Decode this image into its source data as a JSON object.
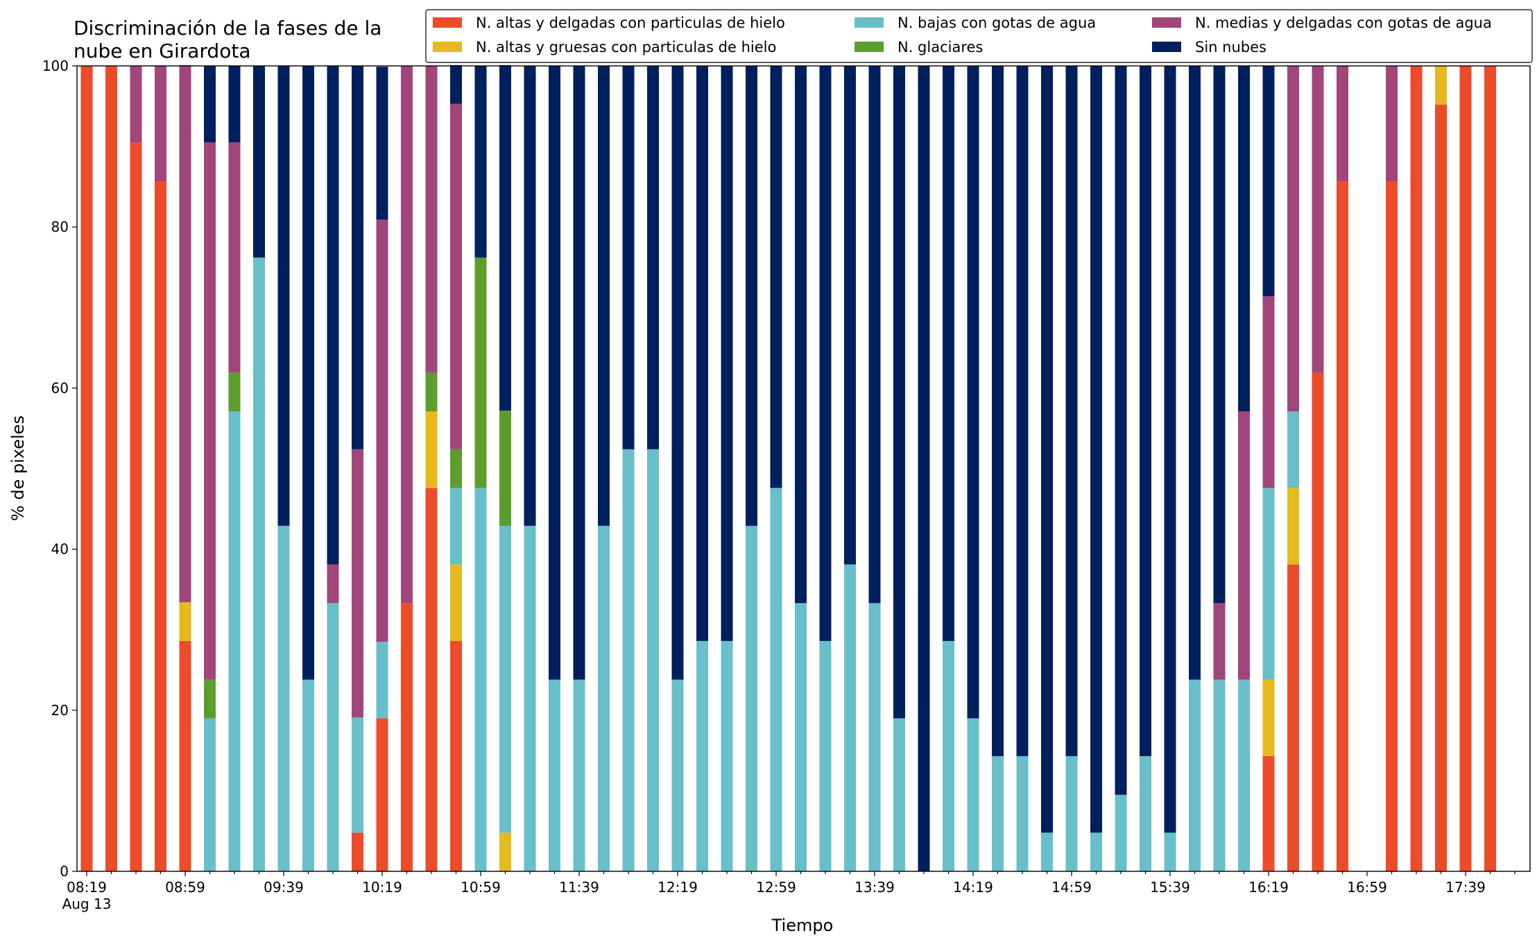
{
  "chart_data": {
    "type": "stacked_bar",
    "title": [
      "Discriminación de la fases de la",
      "nube en Girardota"
    ],
    "x_label": "Tiempo",
    "x_date_label": "Aug 13",
    "y_label": "% de pixeles",
    "categories": [
      "08:19",
      null,
      null,
      null,
      "08:59",
      null,
      null,
      null,
      "09:39",
      null,
      null,
      null,
      "10:19",
      null,
      null,
      null,
      "10:59",
      null,
      null,
      null,
      "11:39",
      null,
      null,
      null,
      "12:19",
      null,
      null,
      null,
      "12:59",
      null,
      null,
      null,
      "13:39",
      null,
      null,
      null,
      "14:19",
      null,
      null,
      null,
      "14:59",
      null,
      null,
      null,
      "15:39",
      null,
      null,
      null,
      "16:19",
      null,
      null,
      null,
      "16:59",
      null,
      null,
      null,
      "17:39",
      null
    ],
    "ylim": [
      0,
      100
    ],
    "yticks": [
      0,
      20,
      40,
      60,
      80,
      100
    ],
    "grid": false,
    "legend": "top",
    "series": [
      {
        "name": "N. altas y delgadas con particulas de hielo",
        "color": "#ee4b2b",
        "values": [
          100,
          100,
          90.5,
          85.7,
          28.6,
          0,
          0,
          0,
          0,
          0,
          0,
          4.8,
          19.0,
          33.3,
          47.6,
          28.6,
          0,
          0,
          0,
          0,
          0,
          0,
          0,
          0,
          0,
          0,
          0,
          0,
          0,
          0,
          0,
          0,
          0,
          0,
          0,
          0,
          0,
          0,
          0,
          0,
          0,
          0,
          0,
          0,
          0,
          0,
          0,
          0,
          14.3,
          38.1,
          61.9,
          85.7,
          0,
          85.7,
          100,
          95.2,
          100,
          100
        ]
      },
      {
        "name": "N. altas y gruesas con particulas de hielo",
        "color": "#e6b91e",
        "values": [
          0,
          0,
          0,
          0,
          4.8,
          0,
          0,
          0,
          0,
          0,
          0,
          0,
          0,
          0,
          9.5,
          9.5,
          0,
          4.8,
          0,
          0,
          0,
          0,
          0,
          0,
          0,
          0,
          0,
          0,
          0,
          0,
          0,
          0,
          0,
          0,
          0,
          0,
          0,
          0,
          0,
          0,
          0,
          0,
          0,
          0,
          0,
          0,
          0,
          0,
          9.5,
          9.5,
          0,
          0,
          0,
          0,
          0,
          4.8,
          0,
          0
        ]
      },
      {
        "name": "N. bajas con gotas de agua",
        "color": "#68bfca",
        "values": [
          0,
          0,
          0,
          0,
          0,
          19.0,
          57.1,
          76.2,
          42.9,
          23.8,
          33.3,
          14.3,
          9.5,
          0,
          0,
          9.5,
          47.6,
          38.1,
          42.9,
          23.8,
          23.8,
          42.9,
          52.4,
          52.4,
          23.8,
          28.6,
          28.6,
          42.9,
          47.6,
          33.3,
          28.6,
          38.1,
          33.3,
          19.0,
          0,
          28.6,
          19.0,
          14.3,
          14.3,
          4.8,
          14.3,
          4.8,
          9.5,
          14.3,
          4.8,
          23.8,
          23.8,
          23.8,
          23.8,
          9.5,
          0,
          0,
          0,
          0,
          0,
          0,
          0,
          0
        ]
      },
      {
        "name": "N. glaciares",
        "color": "#5c9e2d",
        "values": [
          0,
          0,
          0,
          0,
          0,
          4.8,
          4.8,
          0,
          0,
          0,
          0,
          0,
          0,
          0,
          4.8,
          4.8,
          28.6,
          14.3,
          0,
          0,
          0,
          0,
          0,
          0,
          0,
          0,
          0,
          0,
          0,
          0,
          0,
          0,
          0,
          0,
          0,
          0,
          0,
          0,
          0,
          0,
          0,
          0,
          0,
          0,
          0,
          0,
          0,
          0,
          0,
          0,
          0,
          0,
          0,
          0,
          0,
          0,
          0,
          0
        ]
      },
      {
        "name": "N. medias y delgadas con gotas de agua",
        "color": "#a2457a",
        "values": [
          0,
          0,
          9.5,
          14.3,
          66.7,
          66.7,
          28.6,
          0,
          0,
          0,
          4.8,
          33.3,
          52.4,
          66.7,
          38.1,
          42.9,
          0,
          0,
          0,
          0,
          0,
          0,
          0,
          0,
          0,
          0,
          0,
          0,
          0,
          0,
          0,
          0,
          0,
          0,
          0,
          0,
          0,
          0,
          0,
          0,
          0,
          0,
          0,
          0,
          0,
          0,
          9.5,
          33.3,
          23.8,
          42.9,
          38.1,
          14.3,
          0,
          14.3,
          0,
          0,
          0,
          0
        ]
      },
      {
        "name": "Sin nubes",
        "color": "#001f5e",
        "values": [
          0,
          0,
          0,
          0,
          0,
          9.5,
          9.5,
          23.8,
          57.1,
          76.2,
          61.9,
          47.6,
          19.0,
          0,
          0,
          4.8,
          23.8,
          42.9,
          57.1,
          76.2,
          76.2,
          57.1,
          47.6,
          47.6,
          76.2,
          71.4,
          71.4,
          57.1,
          52.4,
          66.7,
          71.4,
          61.9,
          66.7,
          81.0,
          100,
          71.4,
          81.0,
          85.7,
          85.7,
          95.2,
          85.7,
          95.2,
          90.5,
          85.7,
          95.2,
          76.2,
          66.7,
          42.9,
          28.6,
          0,
          0,
          0,
          0,
          0,
          0,
          0,
          0,
          0
        ]
      }
    ]
  }
}
